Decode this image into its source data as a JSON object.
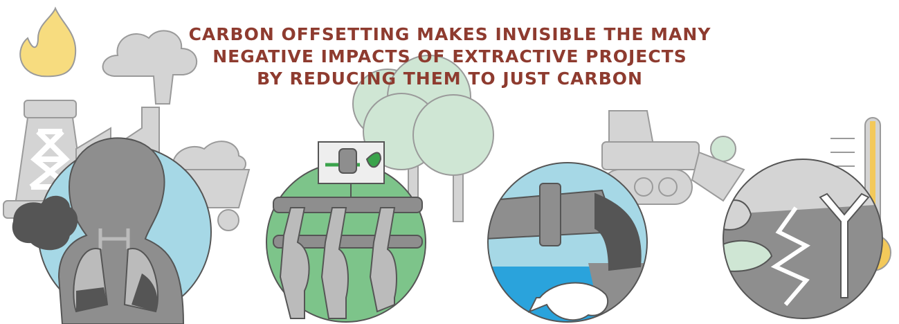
{
  "title": {
    "lines": [
      "CARBON OFFSETTING MAKES INVISIBLE THE MANY",
      "NEGATIVE IMPACTS OF EXTRACTIVE PROJECTS",
      "BY REDUCING THEM TO JUST CARBON"
    ]
  }
}
